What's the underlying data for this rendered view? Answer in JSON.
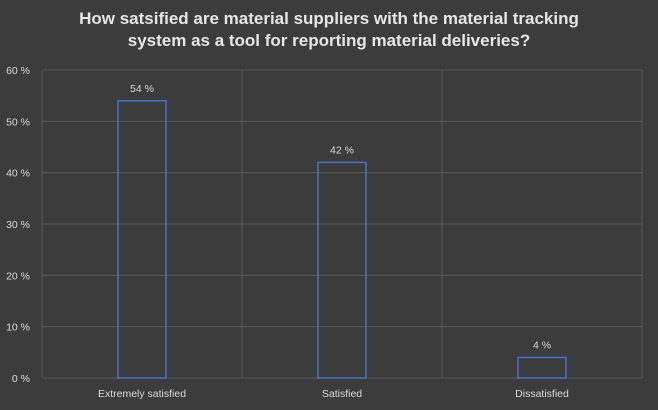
{
  "chart_data": {
    "type": "bar",
    "title_lines": [
      "How satsified are material suppliers with the material tracking",
      "system as a tool for reporting material deliveries?"
    ],
    "categories": [
      "Extremely satisfied",
      "Satisfied",
      "Dissatisfied"
    ],
    "values": [
      54,
      42,
      4
    ],
    "data_labels": [
      "54 %",
      "42 %",
      "4 %"
    ],
    "ylim": [
      0,
      60
    ],
    "yticks": [
      0,
      10,
      20,
      30,
      40,
      50,
      60
    ],
    "ytick_labels": [
      "0 %",
      "10 %",
      "20 %",
      "30 %",
      "40 %",
      "50 %",
      "60 %"
    ],
    "xlabel": "",
    "ylabel": "",
    "grid": true,
    "legend": "none",
    "colors": {
      "background": "#3c3c3c",
      "bar_outline": "#4472c4",
      "gridline": "#595959",
      "text": "#d9d9d9"
    }
  }
}
